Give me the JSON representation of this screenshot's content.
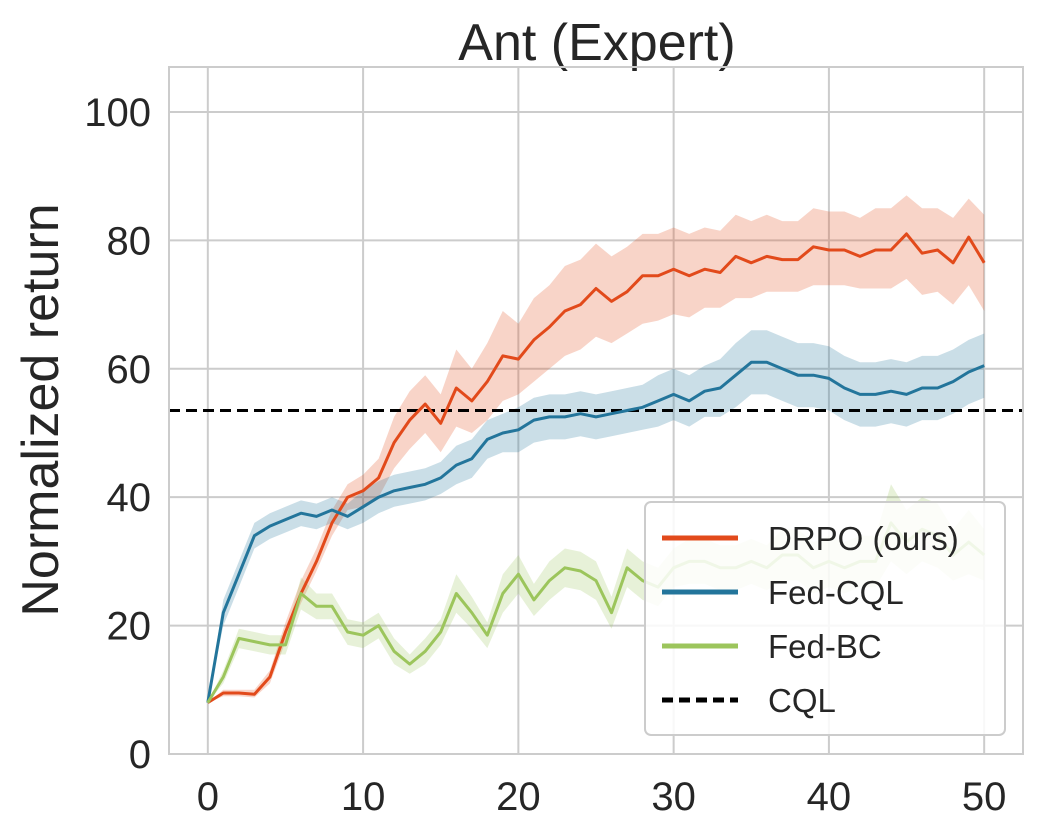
{
  "chart_data": {
    "type": "line",
    "title": "Ant (Expert)",
    "xlabel": "",
    "ylabel": "Normalized return",
    "xlim": [
      -2.5,
      52.5
    ],
    "ylim": [
      0,
      107
    ],
    "xticks": [
      0,
      10,
      20,
      30,
      40,
      50
    ],
    "yticks": [
      0,
      20,
      40,
      60,
      80,
      100
    ],
    "grid": true,
    "legend_position": "lower-right",
    "reference_lines": [
      {
        "name": "CQL",
        "y": 53.5,
        "style": "dashed",
        "color": "#000000"
      }
    ],
    "series": [
      {
        "name": "DRPO (ours)",
        "color": "#e24a1b",
        "x": [
          0,
          1,
          2,
          3,
          4,
          5,
          6,
          7,
          8,
          9,
          10,
          11,
          12,
          13,
          14,
          15,
          16,
          17,
          18,
          19,
          20,
          21,
          22,
          23,
          24,
          25,
          26,
          27,
          28,
          29,
          30,
          31,
          32,
          33,
          34,
          35,
          36,
          37,
          38,
          39,
          40,
          41,
          42,
          43,
          44,
          45,
          46,
          47,
          48,
          49,
          50
        ],
        "values": [
          8,
          9.5,
          9.5,
          9.3,
          12,
          19,
          25,
          30,
          36,
          40,
          41,
          43,
          48.5,
          52,
          54.5,
          51.5,
          57,
          55,
          58,
          62,
          61.5,
          64.5,
          66.5,
          69,
          70,
          72.5,
          70.5,
          72,
          74.5,
          74.5,
          75.5,
          74.5,
          75.5,
          75,
          77.5,
          76.5,
          77.5,
          77,
          77,
          79,
          78.5,
          78.5,
          77.5,
          78.5,
          78.5,
          81,
          78,
          78.5,
          76.5,
          80.5,
          76.5
        ],
        "lower": [
          8,
          9,
          9,
          8.8,
          11,
          17.5,
          23.5,
          28.5,
          34,
          38,
          38.5,
          40,
          44.5,
          47.5,
          50,
          47,
          51,
          50,
          52,
          55,
          56,
          58,
          60,
          62,
          63,
          65,
          64,
          65.5,
          67,
          67.5,
          68.5,
          68,
          69.5,
          69.5,
          71,
          71,
          72,
          72,
          72,
          73,
          73,
          73,
          72.5,
          72.5,
          72.5,
          74,
          71.5,
          72,
          70,
          73,
          69
        ],
        "upper": [
          8,
          10,
          10,
          10,
          13,
          20.5,
          27,
          32,
          38,
          42,
          43.5,
          46,
          52.5,
          56.5,
          59,
          56,
          63,
          60,
          64,
          69,
          67,
          71,
          73,
          76,
          77,
          79.5,
          77.5,
          79,
          81,
          81,
          82,
          81,
          82,
          81.5,
          84,
          83,
          84,
          83,
          83,
          85,
          84.5,
          84.5,
          83.5,
          85,
          85,
          87,
          85,
          85,
          83.5,
          86.5,
          84
        ]
      },
      {
        "name": "Fed-CQL",
        "color": "#23759b",
        "x": [
          0,
          1,
          2,
          3,
          4,
          5,
          6,
          7,
          8,
          9,
          10,
          11,
          12,
          13,
          14,
          15,
          16,
          17,
          18,
          19,
          20,
          21,
          22,
          23,
          24,
          25,
          26,
          27,
          28,
          29,
          30,
          31,
          32,
          33,
          34,
          35,
          36,
          37,
          38,
          39,
          40,
          41,
          42,
          43,
          44,
          45,
          46,
          47,
          48,
          49,
          50
        ],
        "values": [
          8,
          22,
          28,
          34,
          35.5,
          36.5,
          37.5,
          37,
          38,
          37,
          38.5,
          40,
          41,
          41.5,
          42,
          43,
          45,
          46,
          49,
          50,
          50.5,
          52,
          52.5,
          52.5,
          53,
          52.5,
          53,
          53.5,
          54,
          55,
          56,
          55,
          56.5,
          57,
          59,
          61,
          61,
          60,
          59,
          59,
          58.5,
          57,
          56,
          56,
          56.5,
          56,
          57,
          57,
          58,
          59.5,
          60.5
        ],
        "lower": [
          8,
          20,
          26,
          32,
          33.5,
          34.5,
          35.5,
          35,
          36,
          35,
          36,
          37.5,
          38.5,
          39,
          39.5,
          40.5,
          42,
          43,
          46,
          47,
          47,
          48.5,
          49,
          49,
          49.5,
          49,
          49.5,
          50,
          50.5,
          51,
          52,
          51,
          52.5,
          52.5,
          54,
          56,
          56,
          55,
          54,
          54,
          53.5,
          52,
          51,
          51,
          51.5,
          51,
          52,
          52,
          53,
          54.5,
          55.5
        ],
        "upper": [
          8,
          24,
          30,
          36,
          37.5,
          38.5,
          39.5,
          39,
          40,
          39,
          41,
          42.5,
          43.5,
          44,
          44.5,
          45.5,
          48,
          49,
          52,
          53,
          54,
          55.5,
          56,
          56,
          56.5,
          56,
          56.5,
          57,
          57.5,
          59,
          60,
          59,
          60.5,
          61.5,
          64,
          66,
          66,
          65,
          64,
          64,
          63.5,
          62,
          61,
          61,
          61.5,
          61,
          62,
          62,
          63,
          64.5,
          65.5
        ]
      },
      {
        "name": "Fed-BC",
        "color": "#9cc55c",
        "x": [
          0,
          1,
          2,
          3,
          4,
          5,
          6,
          7,
          8,
          9,
          10,
          11,
          12,
          13,
          14,
          15,
          16,
          17,
          18,
          19,
          20,
          21,
          22,
          23,
          24,
          25,
          26,
          27,
          28,
          29,
          30,
          31,
          32,
          33,
          34,
          35,
          36,
          37,
          38,
          39,
          40,
          41,
          42,
          43,
          44,
          45,
          46,
          47,
          48,
          49,
          50
        ],
        "values": [
          8,
          12,
          18,
          17.5,
          17,
          17,
          25,
          23,
          23,
          19,
          18.5,
          20,
          16,
          14,
          16,
          19,
          25,
          22,
          18.5,
          25,
          28,
          24,
          27,
          29,
          28.5,
          27,
          22,
          29,
          27,
          26,
          29,
          30,
          30,
          29,
          29,
          30,
          29,
          31,
          31,
          29,
          30,
          29,
          30,
          30,
          36,
          33,
          35,
          34,
          31,
          33,
          31
        ],
        "lower": [
          8,
          11,
          16.5,
          16,
          15.5,
          15.5,
          22.5,
          21,
          21,
          17,
          16.5,
          18,
          14,
          12.5,
          14,
          17,
          22,
          19.5,
          16.5,
          22,
          25,
          21.5,
          24,
          26,
          25.5,
          24,
          19.5,
          26,
          24,
          23,
          26,
          26.5,
          26.5,
          25.5,
          25.5,
          26.5,
          25.5,
          27,
          27,
          25,
          26,
          25,
          26,
          26,
          30,
          28,
          30,
          29,
          27,
          28,
          27
        ],
        "upper": [
          8,
          13,
          19.5,
          19,
          18.5,
          18.5,
          27.5,
          25,
          25,
          21,
          20.5,
          22,
          18,
          15.5,
          18,
          21,
          28,
          24.5,
          20.5,
          28,
          31,
          26.5,
          30,
          32,
          31.5,
          30,
          24.5,
          32,
          30,
          29,
          32,
          33.5,
          33.5,
          32.5,
          32.5,
          33.5,
          32.5,
          35,
          35,
          33,
          34,
          33,
          34,
          34,
          42,
          38,
          40,
          39,
          35,
          38,
          35
        ]
      }
    ]
  }
}
